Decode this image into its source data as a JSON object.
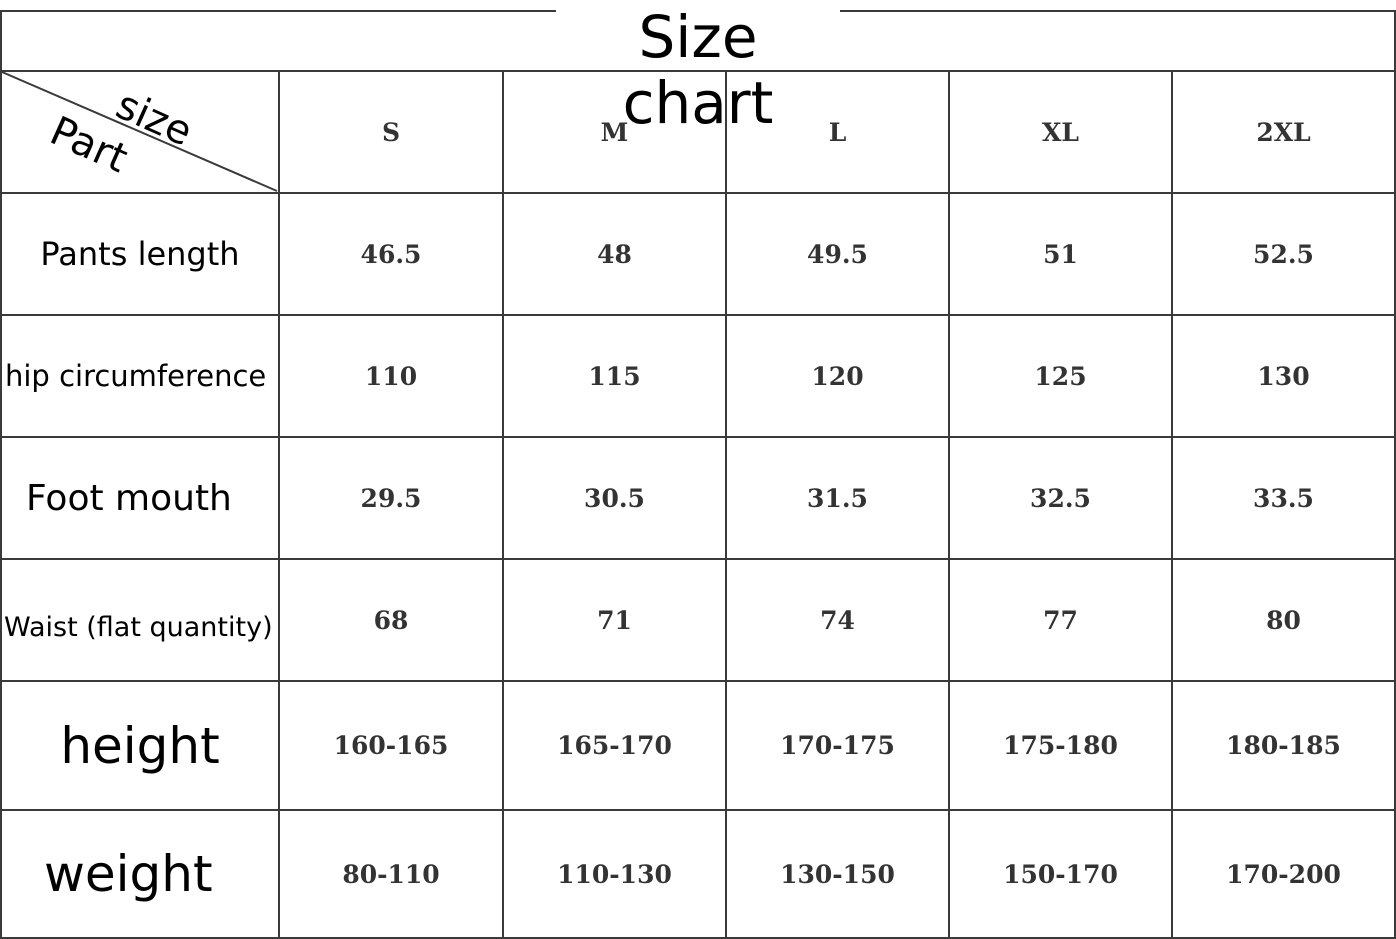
{
  "title": "Size chart",
  "corner": {
    "top_label": "size",
    "bottom_label": "Part"
  },
  "sizes": [
    "S",
    "M",
    "L",
    "XL",
    "2XL"
  ],
  "rows": [
    {
      "part": "Pants length",
      "values": [
        "46.5",
        "48",
        "49.5",
        "51",
        "52.5"
      ]
    },
    {
      "part": "hip circumference",
      "values": [
        "110",
        "115",
        "120",
        "125",
        "130"
      ]
    },
    {
      "part": "Foot mouth",
      "values": [
        "29.5",
        "30.5",
        "31.5",
        "32.5",
        "33.5"
      ]
    },
    {
      "part": "Waist (flat quantity)",
      "values": [
        "68",
        "71",
        "74",
        "77",
        "80"
      ]
    },
    {
      "part": "height",
      "values": [
        "160-165",
        "165-170",
        "170-175",
        "175-180",
        "180-185"
      ]
    },
    {
      "part": "weight",
      "values": [
        "80-110",
        "110-130",
        "130-150",
        "150-170",
        "170-200"
      ]
    }
  ]
}
